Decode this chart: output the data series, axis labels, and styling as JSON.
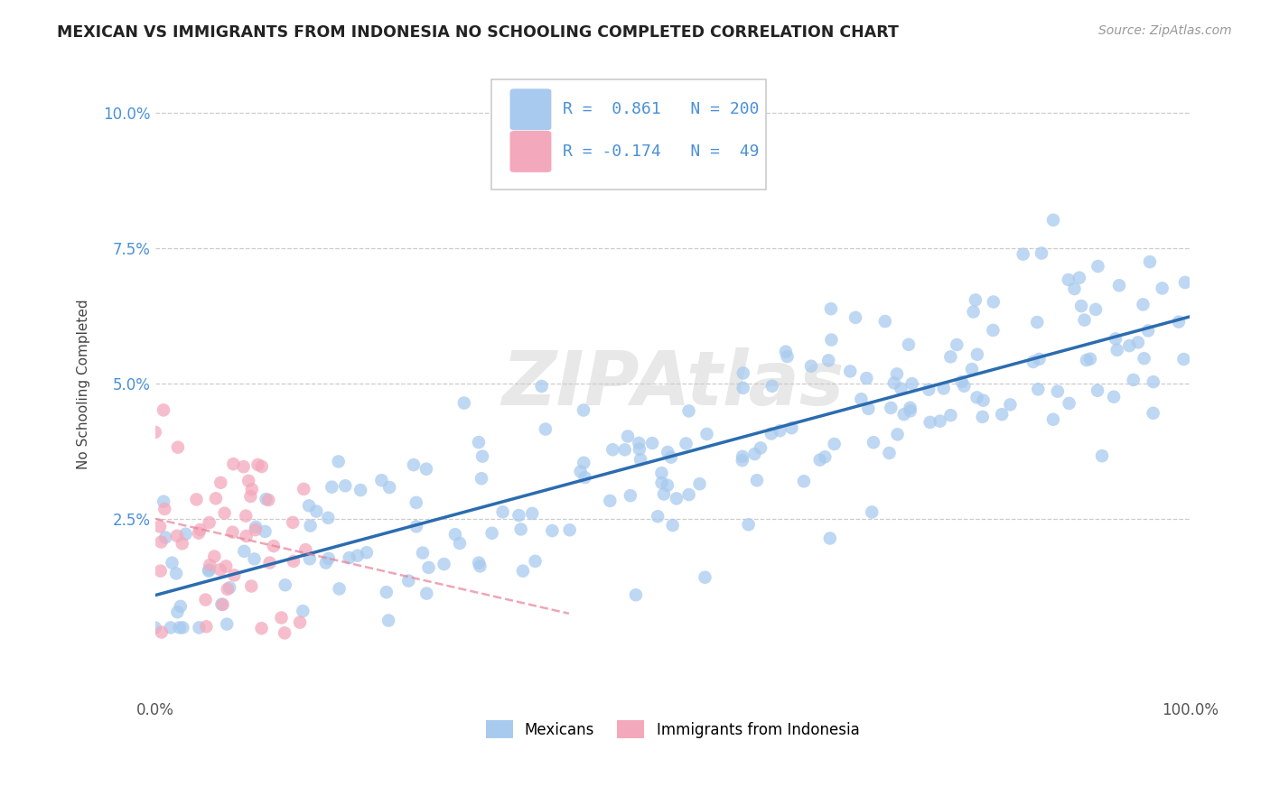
{
  "title": "MEXICAN VS IMMIGRANTS FROM INDONESIA NO SCHOOLING COMPLETED CORRELATION CHART",
  "source": "Source: ZipAtlas.com",
  "ylabel": "No Schooling Completed",
  "xlim": [
    0.0,
    1.0
  ],
  "ylim": [
    -0.008,
    0.108
  ],
  "yticks": [
    0.025,
    0.05,
    0.075,
    0.1
  ],
  "yticklabels": [
    "2.5%",
    "5.0%",
    "7.5%",
    "10.0%"
  ],
  "r_mexican": 0.861,
  "n_mexican": 200,
  "r_indonesia": -0.174,
  "n_indonesia": 49,
  "mexican_color": "#A8CAEE",
  "indonesia_color": "#F4A8BC",
  "mexican_line_color": "#2B6CB0",
  "indonesia_line_color": "#E88098",
  "watermark": "ZIPAtlas",
  "background_color": "#FFFFFF",
  "grid_color": "#CCCCCC",
  "title_color": "#222222",
  "source_color": "#999999",
  "tick_color": "#4A90D9",
  "legend_border_color": "#CCCCCC"
}
